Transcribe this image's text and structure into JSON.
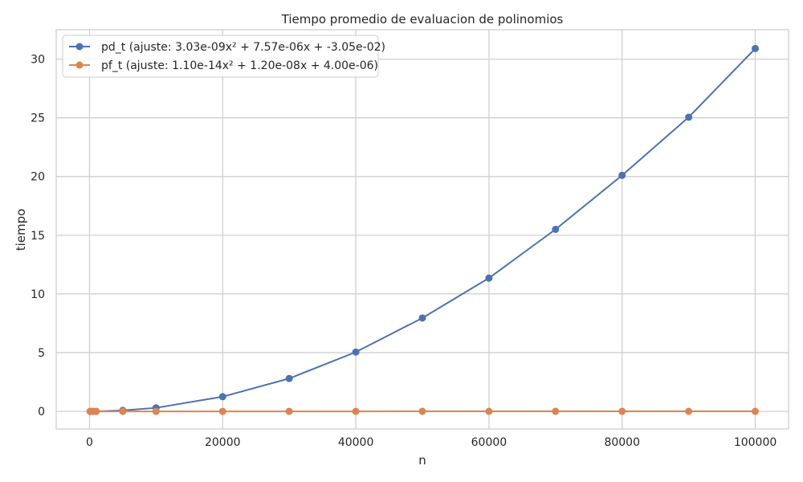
{
  "chart_data": {
    "type": "line",
    "title": "Tiempo promedio de evaluacion de polinomios",
    "xlabel": "n",
    "ylabel": "tiempo",
    "xlim": [
      -5000,
      105000
    ],
    "ylim": [
      -1.5,
      32.5
    ],
    "x_ticks": [
      0,
      20000,
      40000,
      60000,
      80000,
      100000
    ],
    "y_ticks": [
      0,
      5,
      10,
      15,
      20,
      25,
      30
    ],
    "grid": true,
    "legend_position": "top-left",
    "x": [
      100,
      500,
      1000,
      5000,
      10000,
      20000,
      30000,
      40000,
      50000,
      60000,
      70000,
      80000,
      90000,
      100000
    ],
    "series": [
      {
        "name": "pd_t (ajuste: 3.03e-09x² + 7.57e-06x + -3.05e-02)",
        "color": "#4c72b0",
        "values": [
          0.0,
          0.0,
          0.0,
          0.08,
          0.3,
          1.25,
          2.8,
          5.05,
          7.95,
          11.35,
          15.5,
          20.1,
          25.05,
          30.9
        ]
      },
      {
        "name": "pf_t (ajuste: 1.10e-14x² + 1.20e-08x + 4.00e-06)",
        "color": "#dd8452",
        "values": [
          5e-06,
          1e-05,
          1.6e-05,
          6e-05,
          0.00012,
          0.00024,
          0.00037,
          0.0005,
          0.00063,
          0.00076,
          0.0009,
          0.001,
          0.0012,
          0.0013
        ]
      }
    ]
  }
}
